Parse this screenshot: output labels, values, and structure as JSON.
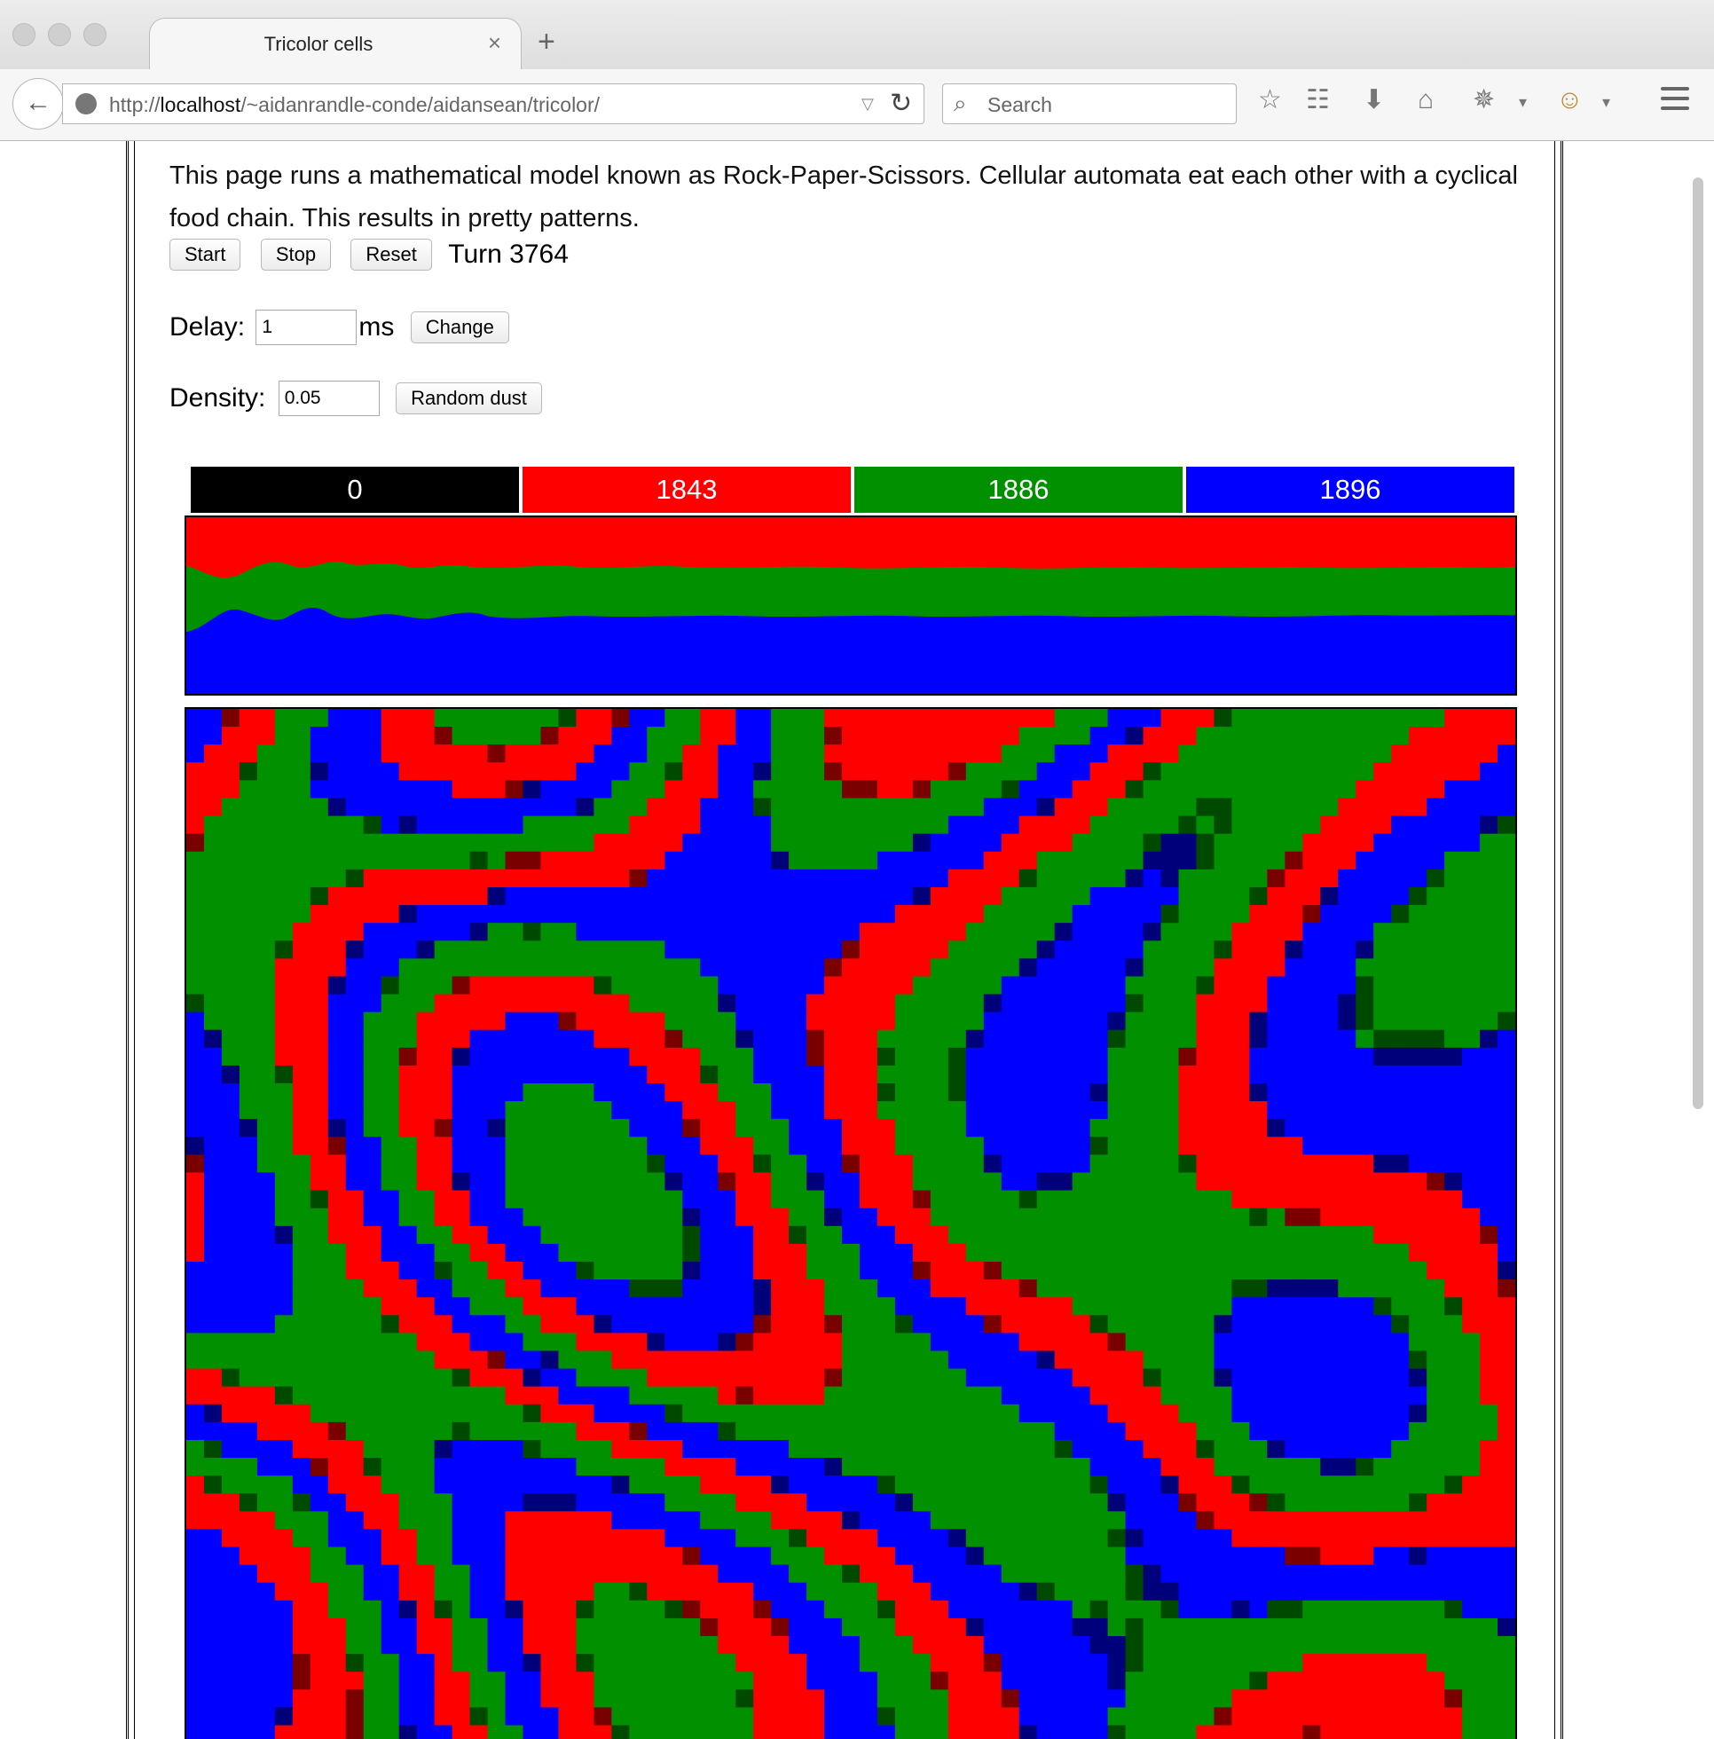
{
  "browser": {
    "tab_title": "Tricolor cells",
    "tab_close": "×",
    "new_tab": "+",
    "url_prefix": "http://",
    "url_host": "localhost",
    "url_path": "/~aidanrandle-conde/aidansean/tricolor/",
    "search_placeholder": "Search",
    "icons": [
      "back-arrow-icon",
      "globe-icon",
      "reload-icon",
      "search-icon",
      "star-icon",
      "reading-list-icon",
      "download-icon",
      "home-icon",
      "extension-icon",
      "profile-icon",
      "menu-icon"
    ]
  },
  "page": {
    "intro": "This page runs a mathematical model known as Rock-Paper-Scissors. Cellular automata eat each other with a cyclical food chain. This results in pretty patterns.",
    "start_label": "Start",
    "stop_label": "Stop",
    "reset_label": "Reset",
    "turn_text": "Turn 3764",
    "delay_label": "Delay:",
    "delay_value": "1",
    "delay_unit": "ms",
    "change_label": "Change",
    "density_label": "Density:",
    "density_value": "0.05",
    "dust_label": "Random dust"
  },
  "counts": [
    {
      "value": "0",
      "color": "#000000"
    },
    {
      "value": "1843",
      "color": "#ff0000"
    },
    {
      "value": "1886",
      "color": "#009000"
    },
    {
      "value": "1896",
      "color": "#0000ff"
    }
  ],
  "colors": {
    "red": "#ff0000",
    "green": "#009000",
    "blue": "#0000ff",
    "empty": "#000000"
  }
}
